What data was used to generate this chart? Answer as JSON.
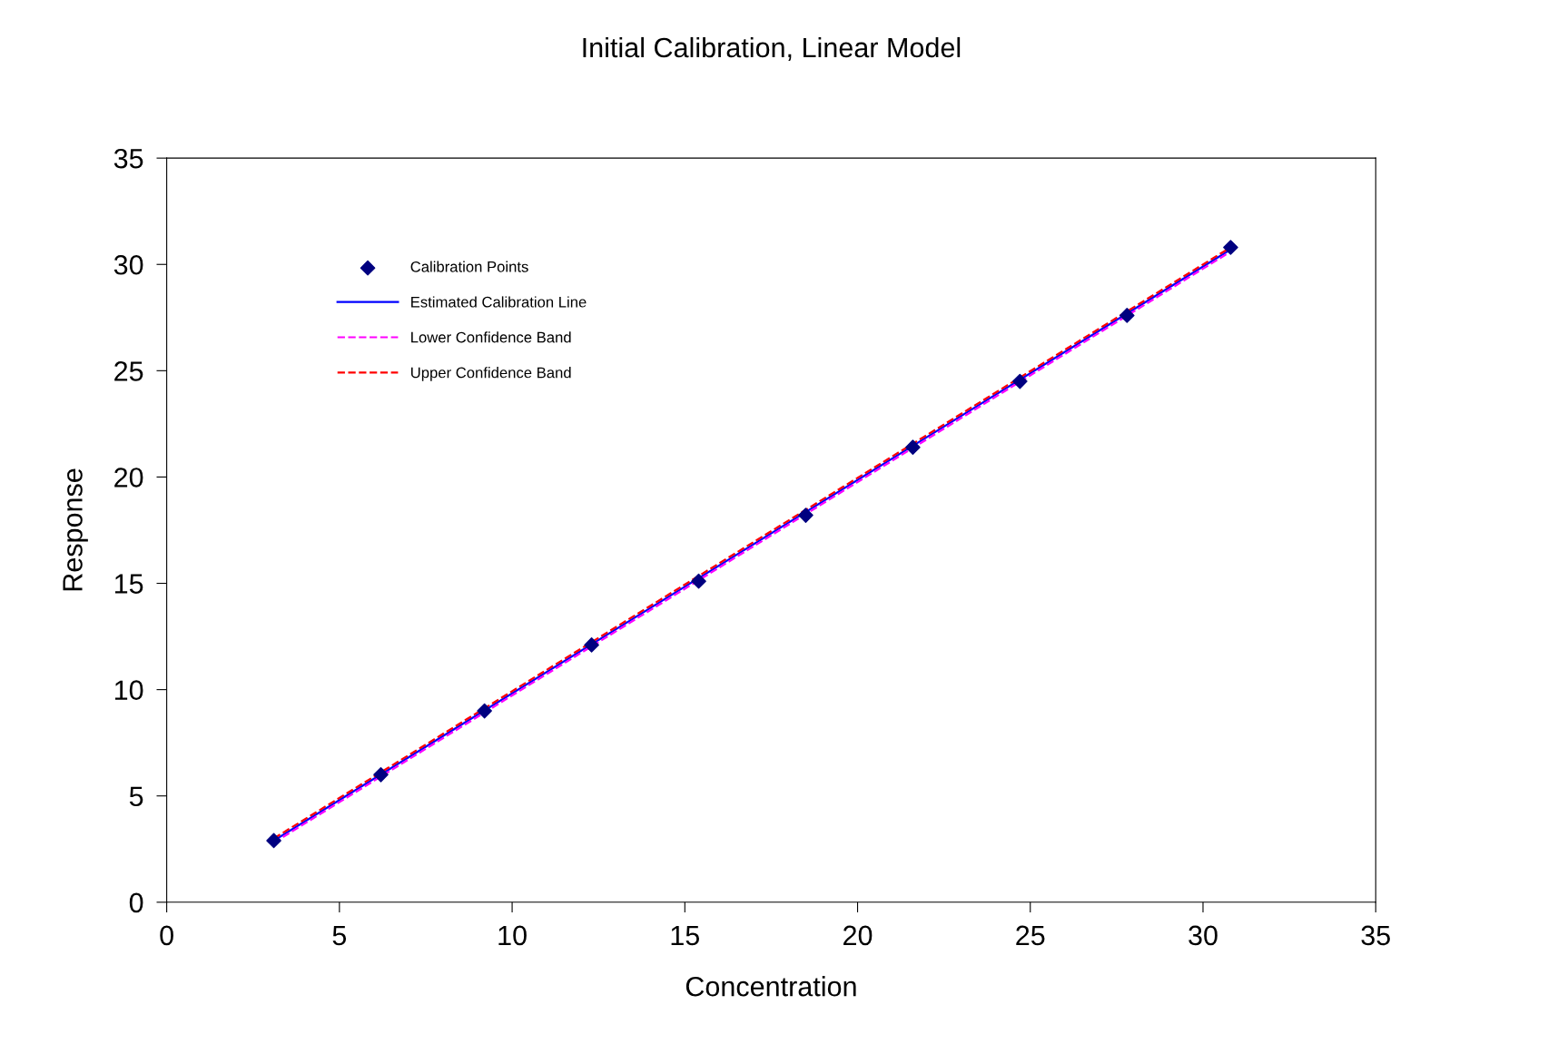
{
  "chart_data": {
    "type": "scatter",
    "title": "Initial Calibration, Linear Model",
    "xlabel": "Concentration",
    "ylabel": "Response",
    "xlim": [
      0,
      35
    ],
    "ylim": [
      0,
      35
    ],
    "xticks": [
      0,
      5,
      10,
      15,
      20,
      25,
      30,
      35
    ],
    "yticks": [
      0,
      5,
      10,
      15,
      20,
      25,
      30,
      35
    ],
    "grid": false,
    "legend": "upper left",
    "series": [
      {
        "name": "Calibration Points",
        "marker": "diamond",
        "color": "#000080",
        "x": [
          3.1,
          6.2,
          9.2,
          12.3,
          15.4,
          18.5,
          21.6,
          24.7,
          27.8,
          30.8
        ],
        "values": [
          2.9,
          6.0,
          9.0,
          12.1,
          15.1,
          18.2,
          21.4,
          24.5,
          27.6,
          30.8
        ]
      },
      {
        "name": "Estimated Calibration Line",
        "type": "line",
        "line_style": "solid",
        "color": "#0000ff",
        "x": [
          3.1,
          30.8
        ],
        "values": [
          2.9,
          30.7
        ]
      },
      {
        "name": "Lower Confidence Band",
        "type": "line",
        "line_style": "dashed",
        "color": "#ff00ff",
        "x": [
          3.1,
          30.8
        ],
        "values": [
          2.8,
          30.6
        ]
      },
      {
        "name": "Upper Confidence Band",
        "type": "line",
        "line_style": "dashed",
        "color": "#ff0000",
        "x": [
          3.1,
          30.8
        ],
        "values": [
          3.0,
          30.8
        ]
      }
    ]
  }
}
